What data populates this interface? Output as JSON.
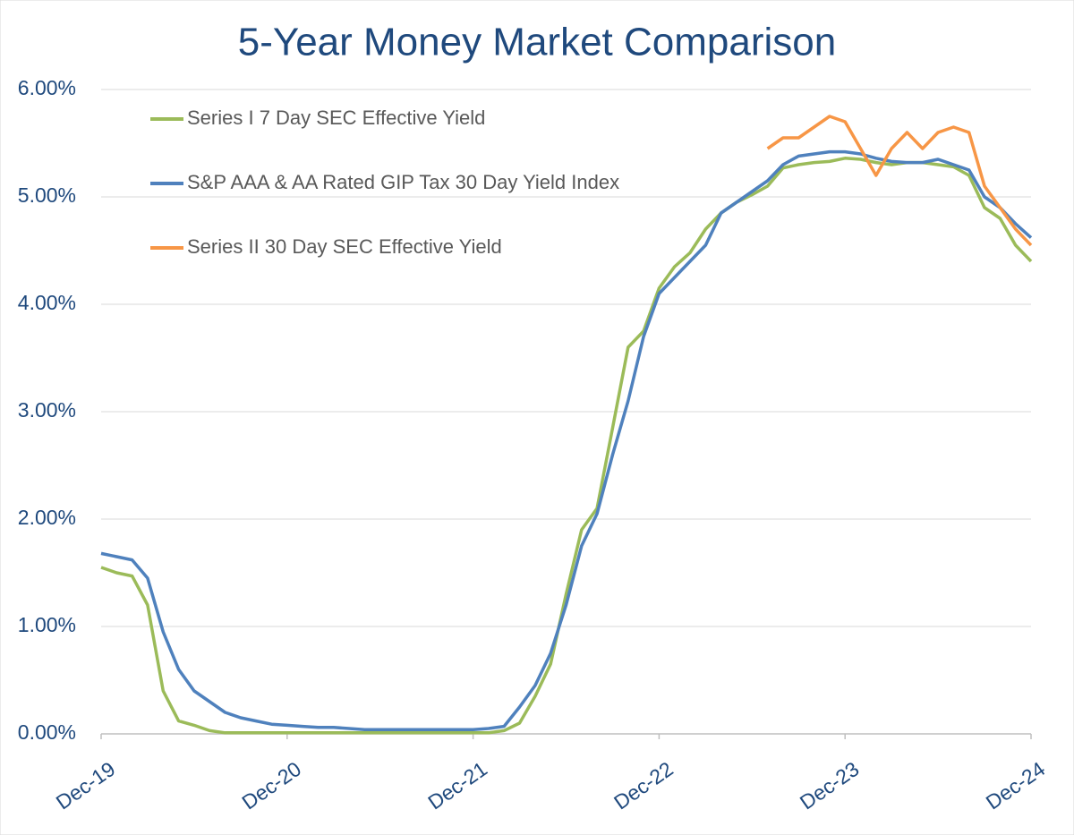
{
  "chart_data": {
    "type": "line",
    "title": "5-Year Money Market Comparison",
    "categories": [
      "Dec-19",
      null,
      null,
      null,
      null,
      null,
      null,
      null,
      null,
      null,
      null,
      null,
      "Dec-20",
      null,
      null,
      null,
      null,
      null,
      null,
      null,
      null,
      null,
      null,
      null,
      "Dec-21",
      null,
      null,
      null,
      null,
      null,
      null,
      null,
      null,
      null,
      null,
      null,
      "Dec-22",
      null,
      null,
      null,
      null,
      null,
      null,
      null,
      null,
      null,
      null,
      null,
      "Dec-23",
      null,
      null,
      null,
      null,
      null,
      null,
      null,
      null,
      null,
      null,
      null,
      "Dec-24"
    ],
    "series": [
      {
        "name": "Series I 7 Day SEC Effective Yield",
        "color": "#9bbb59",
        "values": [
          1.55,
          1.5,
          1.47,
          1.2,
          0.4,
          0.12,
          0.08,
          0.03,
          0.01,
          0.01,
          0.01,
          0.01,
          0.01,
          0.01,
          0.01,
          0.01,
          0.01,
          0.01,
          0.01,
          0.01,
          0.01,
          0.01,
          0.01,
          0.01,
          0.01,
          0.01,
          0.03,
          0.1,
          0.35,
          0.65,
          1.3,
          1.9,
          2.1,
          2.85,
          3.6,
          3.75,
          4.15,
          4.35,
          4.48,
          4.7,
          4.85,
          4.95,
          5.02,
          5.1,
          5.27,
          5.3,
          5.32,
          5.33,
          5.36,
          5.35,
          5.32,
          5.3,
          5.32,
          5.32,
          5.3,
          5.28,
          5.2,
          4.9,
          4.8,
          4.55,
          4.4
        ]
      },
      {
        "name": "S&P AAA & AA Rated GIP Tax 30 Day Yield Index",
        "color": "#4f81bd",
        "values": [
          1.68,
          1.65,
          1.62,
          1.45,
          0.95,
          0.6,
          0.4,
          0.3,
          0.2,
          0.15,
          0.12,
          0.09,
          0.08,
          0.07,
          0.06,
          0.06,
          0.05,
          0.04,
          0.04,
          0.04,
          0.04,
          0.04,
          0.04,
          0.04,
          0.04,
          0.05,
          0.07,
          0.25,
          0.45,
          0.75,
          1.2,
          1.75,
          2.05,
          2.6,
          3.1,
          3.7,
          4.1,
          4.25,
          4.4,
          4.55,
          4.85,
          4.95,
          5.05,
          5.15,
          5.3,
          5.38,
          5.4,
          5.42,
          5.42,
          5.4,
          5.36,
          5.33,
          5.32,
          5.32,
          5.35,
          5.3,
          5.25,
          5.0,
          4.9,
          4.75,
          4.62
        ]
      },
      {
        "name": "Series II 30 Day SEC Effective Yield",
        "color": "#f79646",
        "values": [
          null,
          null,
          null,
          null,
          null,
          null,
          null,
          null,
          null,
          null,
          null,
          null,
          null,
          null,
          null,
          null,
          null,
          null,
          null,
          null,
          null,
          null,
          null,
          null,
          null,
          null,
          null,
          null,
          null,
          null,
          null,
          null,
          null,
          null,
          null,
          null,
          null,
          null,
          null,
          null,
          null,
          null,
          null,
          5.45,
          5.55,
          5.55,
          5.65,
          5.75,
          5.7,
          5.45,
          5.2,
          5.45,
          5.6,
          5.45,
          5.6,
          5.65,
          5.6,
          5.1,
          4.9,
          4.7,
          4.55
        ]
      }
    ],
    "ylim": [
      0,
      6
    ],
    "yticks": [
      {
        "value": 0,
        "label": "0.00%"
      },
      {
        "value": 1,
        "label": "1.00%"
      },
      {
        "value": 2,
        "label": "2.00%"
      },
      {
        "value": 3,
        "label": "3.00%"
      },
      {
        "value": 4,
        "label": "4.00%"
      },
      {
        "value": 5,
        "label": "5.00%"
      },
      {
        "value": 6,
        "label": "6.00%"
      }
    ],
    "grid": true,
    "legend": "upper left"
  }
}
